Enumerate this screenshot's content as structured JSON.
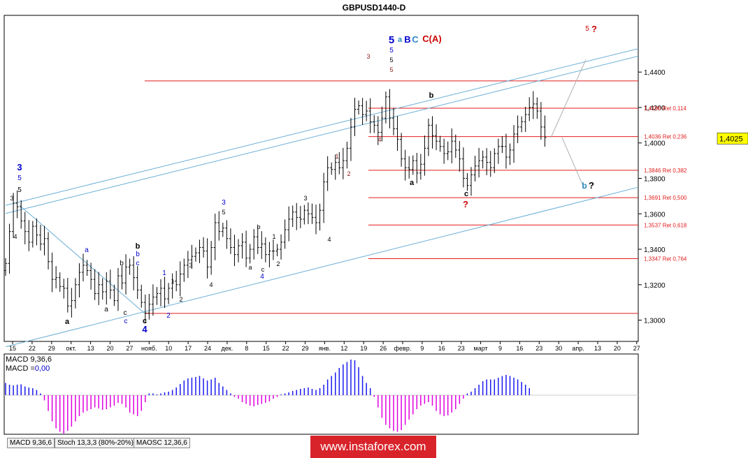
{
  "title": "GBPUSD1440-D",
  "chart_data": {
    "type": "candlestick",
    "symbol": "GBPUSD",
    "timeframe": "D",
    "ylim": [
      1.288,
      1.472
    ],
    "ylabels": [
      "1,4400",
      "1,4200",
      "1,4000",
      "1,3800",
      "1,3600",
      "1,3400",
      "1,3200",
      "1,3000"
    ],
    "yticks": [
      1.44,
      1.42,
      1.4,
      1.38,
      1.36,
      1.34,
      1.32,
      1.3
    ],
    "current_price": 1.4025,
    "current_price_label": "1,4025",
    "xlabels": [
      "15",
      "22",
      "29",
      "окт.",
      "13",
      "20",
      "27",
      "нояб.",
      "10",
      "17",
      "24",
      "дек.",
      "8",
      "15",
      "22",
      "29",
      "янв.",
      "12",
      "19",
      "26",
      "февр.",
      "9",
      "16",
      "23",
      "март",
      "9",
      "16",
      "23",
      "30",
      "апр.",
      "13",
      "20",
      "27"
    ],
    "fib_levels": [
      {
        "price": 1.435,
        "label": ""
      },
      {
        "price": 1.4196,
        "label": "1,4196 Ret 0,114"
      },
      {
        "price": 1.4036,
        "label": "1,4036 Ret 0,236"
      },
      {
        "price": 1.3846,
        "label": "1,3846 Ret 0,382"
      },
      {
        "price": 1.3691,
        "label": "1,3691 Ret 0,500"
      },
      {
        "price": 1.3537,
        "label": "1,3537 Ret 0,618"
      },
      {
        "price": 1.3347,
        "label": "1,3347 Ret 0,764"
      },
      {
        "price": 1.3038,
        "label": ""
      }
    ],
    "closes": [
      1.332,
      1.35,
      1.366,
      1.364,
      1.356,
      1.35,
      1.344,
      1.353,
      1.348,
      1.343,
      1.346,
      1.333,
      1.323,
      1.324,
      1.319,
      1.318,
      1.308,
      1.311,
      1.32,
      1.327,
      1.331,
      1.328,
      1.323,
      1.315,
      1.32,
      1.316,
      1.322,
      1.317,
      1.311,
      1.325,
      1.321,
      1.33,
      1.331,
      1.324,
      1.317,
      1.31,
      1.304,
      1.309,
      1.313,
      1.315,
      1.318,
      1.312,
      1.318,
      1.322,
      1.32,
      1.326,
      1.331,
      1.334,
      1.336,
      1.338,
      1.341,
      1.339,
      1.33,
      1.341,
      1.355,
      1.35,
      1.352,
      1.346,
      1.341,
      1.337,
      1.342,
      1.344,
      1.335,
      1.34,
      1.347,
      1.341,
      1.343,
      1.337,
      1.339,
      1.339,
      1.34,
      1.344,
      1.351,
      1.357,
      1.361,
      1.358,
      1.357,
      1.362,
      1.36,
      1.358,
      1.355,
      1.362,
      1.378,
      1.386,
      1.385,
      1.389,
      1.386,
      1.39,
      1.397,
      1.409,
      1.419,
      1.421,
      1.416,
      1.418,
      1.412,
      1.41,
      1.406,
      1.414,
      1.426,
      1.414,
      1.408,
      1.402,
      1.391,
      1.386,
      1.385,
      1.39,
      1.383,
      1.388,
      1.397,
      1.41,
      1.404,
      1.401,
      1.398,
      1.394,
      1.395,
      1.401,
      1.396,
      1.391,
      1.38,
      1.376,
      1.382,
      1.387,
      1.39,
      1.392,
      1.389,
      1.386,
      1.394,
      1.398,
      1.398,
      1.392,
      1.396,
      1.405,
      1.409,
      1.412,
      1.416,
      1.42,
      1.422,
      1.418,
      1.409,
      1.403
    ],
    "macd_hist": [
      0.35,
      0.3,
      0.28,
      0.3,
      0.31,
      0.25,
      0.22,
      0.2,
      0.15,
      0.05,
      -0.15,
      -0.45,
      -0.75,
      -0.95,
      -1.05,
      -1.1,
      -1.02,
      -0.9,
      -0.75,
      -0.6,
      -0.5,
      -0.45,
      -0.4,
      -0.35,
      -0.38,
      -0.42,
      -0.4,
      -0.35,
      -0.3,
      -0.22,
      -0.25,
      -0.35,
      -0.5,
      -0.55,
      -0.6,
      -0.45,
      -0.2,
      0.05,
      0.05,
      0.02,
      0.05,
      0.08,
      0.1,
      0.15,
      0.22,
      0.32,
      0.42,
      0.48,
      0.5,
      0.52,
      0.55,
      0.48,
      0.42,
      0.45,
      0.5,
      0.35,
      0.25,
      0.15,
      0.05,
      -0.05,
      -0.1,
      -0.2,
      -0.25,
      -0.3,
      -0.32,
      -0.28,
      -0.25,
      -0.22,
      -0.18,
      -0.1,
      -0.05,
      0.02,
      0.05,
      0.08,
      0.12,
      0.15,
      0.18,
      0.2,
      0.22,
      0.18,
      0.15,
      0.2,
      0.3,
      0.45,
      0.55,
      0.65,
      0.78,
      0.88,
      0.95,
      1.02,
      1.0,
      0.8,
      0.55,
      0.35,
      0.2,
      -0.05,
      -0.35,
      -0.65,
      -0.85,
      -0.95,
      -1.02,
      -1.05,
      -1.0,
      -0.85,
      -0.7,
      -0.55,
      -0.4,
      -0.3,
      -0.25,
      -0.2,
      -0.3,
      -0.45,
      -0.55,
      -0.6,
      -0.58,
      -0.5,
      -0.4,
      -0.25,
      -0.1,
      0.05,
      0.1,
      0.2,
      0.3,
      0.4,
      0.45,
      0.45,
      0.45,
      0.5,
      0.55,
      0.58,
      0.55,
      0.5,
      0.45,
      0.38,
      0.3,
      0.2
    ],
    "indicator_label": "MACD 9,36,6",
    "indicator_value_prefix": "MACD =",
    "indicator_value": "0,00"
  },
  "wave_labels": [
    {
      "text": "3",
      "color": "#0000cc",
      "size": 13,
      "bold": true
    },
    {
      "text": "5",
      "color": "#0000cc",
      "size": 10,
      "bold": false
    },
    {
      "text": "5",
      "color": "#000000",
      "size": 10,
      "bold": false
    },
    {
      "text": "3",
      "color": "#000000",
      "size": 9,
      "bold": false
    },
    {
      "text": "4",
      "color": "#000000",
      "size": 9,
      "bold": false
    },
    {
      "text": "a",
      "color": "#000000",
      "size": 11,
      "bold": true
    },
    {
      "text": "a",
      "color": "#0000cc",
      "size": 10,
      "bold": false
    },
    {
      "text": "a",
      "color": "#000000",
      "size": 10,
      "bold": false
    },
    {
      "text": "b",
      "color": "#000000",
      "size": 10,
      "bold": false
    },
    {
      "text": "c",
      "color": "#000000",
      "size": 10,
      "bold": false
    },
    {
      "text": "c",
      "color": "#0000cc",
      "size": 10,
      "bold": false
    },
    {
      "text": "b",
      "color": "#0000cc",
      "size": 10,
      "bold": false
    },
    {
      "text": "b",
      "color": "#000000",
      "size": 11,
      "bold": true
    },
    {
      "text": "c",
      "color": "#0000cc",
      "size": 10,
      "bold": false
    },
    {
      "text": "c",
      "color": "#000000",
      "size": 11,
      "bold": true
    },
    {
      "text": "4",
      "color": "#0000cc",
      "size": 13,
      "bold": true
    },
    {
      "text": "1",
      "color": "#0000cc",
      "size": 10,
      "bold": false
    },
    {
      "text": "2",
      "color": "#0000cc",
      "size": 10,
      "bold": false
    },
    {
      "text": "1",
      "color": "#000000",
      "size": 9,
      "bold": false
    },
    {
      "text": "2",
      "color": "#000000",
      "size": 9,
      "bold": false
    },
    {
      "text": "3",
      "color": "#000000",
      "size": 9,
      "bold": false
    },
    {
      "text": "4",
      "color": "#000000",
      "size": 9,
      "bold": false
    },
    {
      "text": "3",
      "color": "#0000cc",
      "size": 10,
      "bold": false
    },
    {
      "text": "5",
      "color": "#000000",
      "size": 9,
      "bold": false
    },
    {
      "text": "b",
      "color": "#000000",
      "size": 9,
      "bold": false
    },
    {
      "text": "a",
      "color": "#000000",
      "size": 9,
      "bold": false
    },
    {
      "text": "c",
      "color": "#000000",
      "size": 9,
      "bold": false
    },
    {
      "text": "4",
      "color": "#0000cc",
      "size": 10,
      "bold": false
    },
    {
      "text": "1",
      "color": "#000000",
      "size": 9,
      "bold": false
    },
    {
      "text": "2",
      "color": "#000000",
      "size": 9,
      "bold": false
    },
    {
      "text": "3",
      "color": "#000000",
      "size": 9,
      "bold": false
    },
    {
      "text": "4",
      "color": "#000000",
      "size": 9,
      "bold": false
    },
    {
      "text": "1",
      "color": "#8b1a1a",
      "size": 9,
      "bold": false
    },
    {
      "text": "2",
      "color": "#8b1a1a",
      "size": 9,
      "bold": false
    },
    {
      "text": "3",
      "color": "#8b1a1a",
      "size": 9,
      "bold": false
    },
    {
      "text": "4",
      "color": "#8b1a1a",
      "size": 9,
      "bold": false
    },
    {
      "text": "5",
      "color": "#8b1a1a",
      "size": 9,
      "bold": false
    },
    {
      "text": "5",
      "color": "#000000",
      "size": 9,
      "bold": false
    },
    {
      "text": "5",
      "color": "#0000cc",
      "size": 10,
      "bold": false
    },
    {
      "text": "5",
      "color": "#0000cc",
      "size": 15,
      "bold": true
    },
    {
      "text": "a",
      "color": "#2e8bc0",
      "size": 11,
      "bold": true
    },
    {
      "text": "B",
      "color": "#0000cc",
      "size": 13,
      "bold": true
    },
    {
      "text": "C",
      "color": "#2e8bc0",
      "size": 13,
      "bold": true
    },
    {
      "text": "C(A)",
      "color": "#cc0000",
      "size": 13,
      "bold": true
    },
    {
      "text": "b",
      "color": "#000000",
      "size": 11,
      "bold": true
    },
    {
      "text": "a",
      "color": "#000000",
      "size": 11,
      "bold": true
    },
    {
      "text": "c",
      "color": "#000000",
      "size": 11,
      "bold": true
    },
    {
      "text": "?",
      "color": "#cc0000",
      "size": 13,
      "bold": true
    },
    {
      "text": "5",
      "color": "#cc0000",
      "size": 10,
      "bold": false
    },
    {
      "text": "?",
      "color": "#cc0000",
      "size": 13,
      "bold": true
    },
    {
      "text": "b",
      "color": "#2e8bc0",
      "size": 12,
      "bold": true
    },
    {
      "text": "?",
      "color": "#000000",
      "size": 13,
      "bold": true
    }
  ],
  "tabs": [
    {
      "label": "MACD 9,36,6"
    },
    {
      "label": "Stoch 13,3,3 (80%-20%)"
    },
    {
      "label": "MAOSC 12,36,6"
    }
  ],
  "watermark": "www.instaforex.com",
  "colors": {
    "fib": "#e31b1b",
    "channel": "#6aaed6",
    "projection": "#9a9a9a",
    "macd_pos": "#1a1af0",
    "macd_neg": "#e000e0",
    "candle": "#000000",
    "brand": "#d8232a"
  }
}
